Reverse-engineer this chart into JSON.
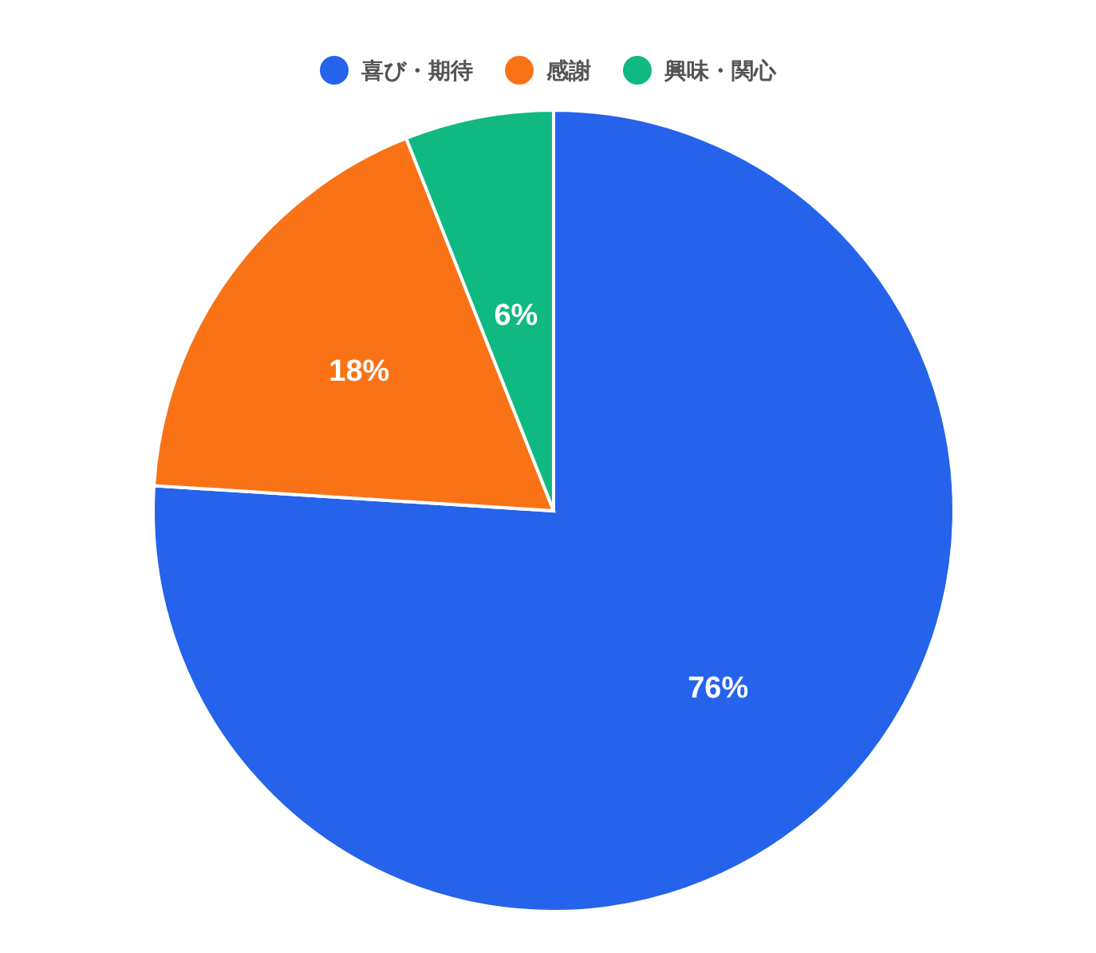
{
  "chart_data": {
    "type": "pie",
    "categories": [
      "喜び・期待",
      "感謝",
      "興味・関心"
    ],
    "values": [
      76,
      18,
      6
    ],
    "colors": [
      "#2563eb",
      "#f97316",
      "#10b981"
    ],
    "value_labels": [
      "76%",
      "18%",
      "6%"
    ],
    "legend": "top"
  }
}
